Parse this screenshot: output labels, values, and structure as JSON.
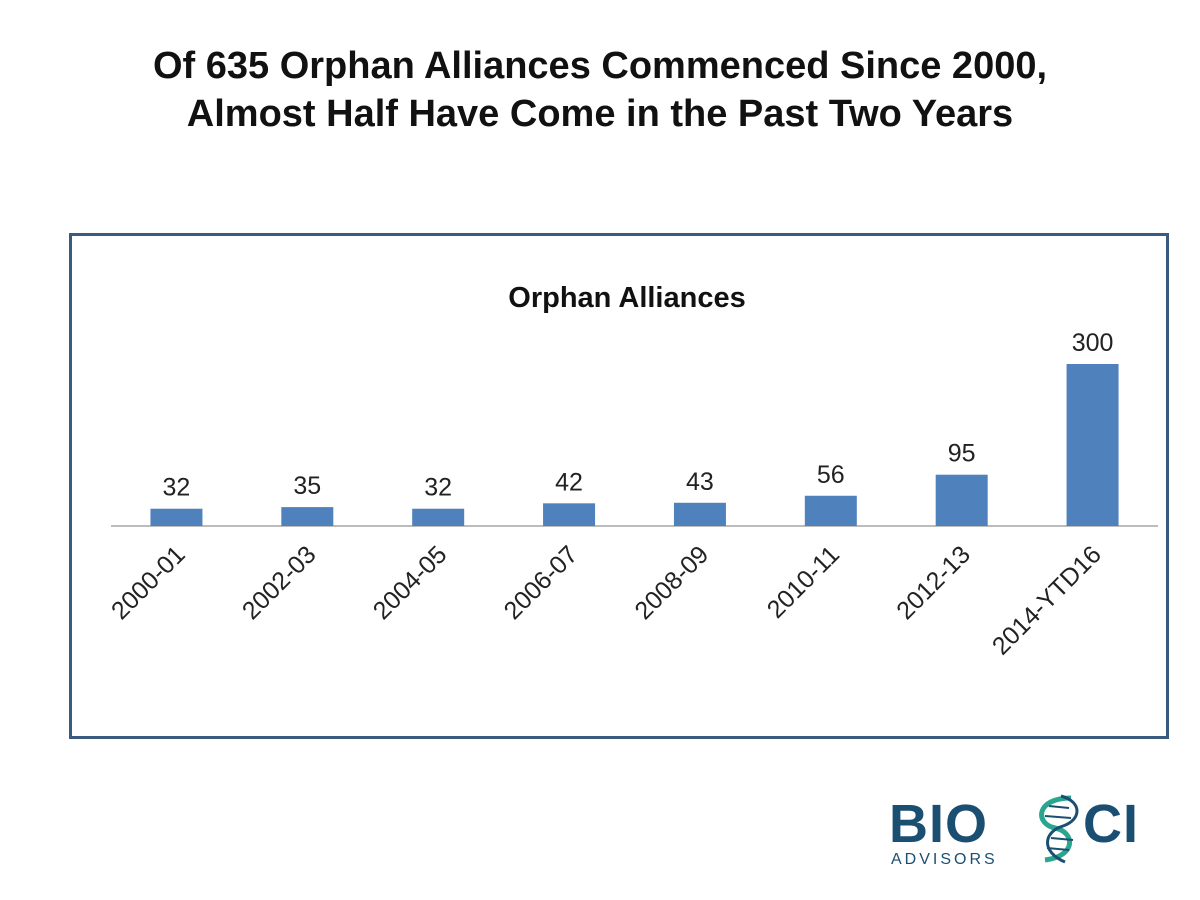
{
  "slide": {
    "title_line1": "Of 635 Orphan Alliances Commenced Since 2000,",
    "title_line2": "Almost Half Have Come in the Past Two Years"
  },
  "colors": {
    "bar": "#4f81bd",
    "frame": "#3a5a80",
    "axis": "#a6a6a6",
    "text": "#222222",
    "logo_navy": "#1b4f72",
    "logo_teal": "#2aa58f"
  },
  "chart_data": {
    "type": "bar",
    "title": "Orphan Alliances",
    "categories": [
      "2000-01",
      "2002-03",
      "2004-05",
      "2006-07",
      "2008-09",
      "2010-11",
      "2012-13",
      "2014-YTD16"
    ],
    "values": [
      32,
      35,
      32,
      42,
      43,
      56,
      95,
      300
    ],
    "xlabel": "",
    "ylabel": "",
    "ylim": [
      0,
      300
    ],
    "grid": false,
    "legend": "none",
    "data_labels": true
  },
  "logo": {
    "text_part1": "BIO",
    "text_part2": "CI",
    "subtitle": "ADVISORS"
  }
}
